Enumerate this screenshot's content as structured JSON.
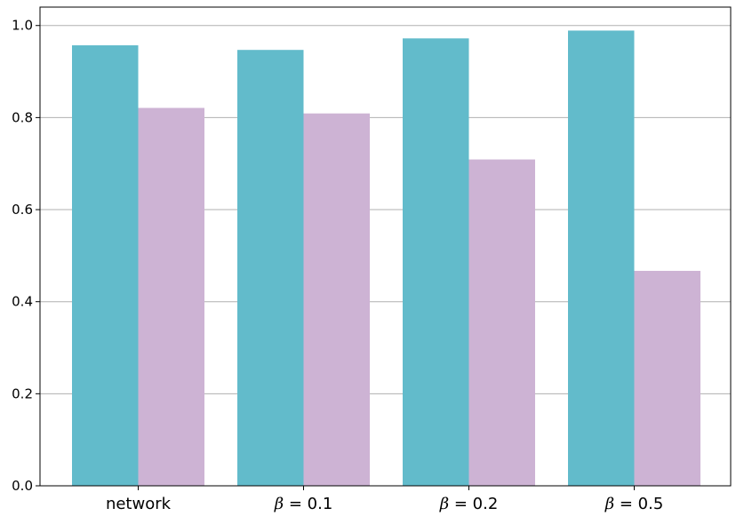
{
  "chart_data": {
    "type": "bar",
    "categories": [
      {
        "label": "network",
        "math": false,
        "symbol": "",
        "value_text": ""
      },
      {
        "label": "β = 0.1",
        "math": true,
        "symbol": "β",
        "value_text": " = 0.1"
      },
      {
        "label": "β = 0.2",
        "math": true,
        "symbol": "β",
        "value_text": " = 0.2"
      },
      {
        "label": "β = 0.5",
        "math": true,
        "symbol": "β",
        "value_text": " = 0.5"
      }
    ],
    "series": [
      {
        "color": "#62bbcb",
        "values": [
          0.957,
          0.947,
          0.972,
          0.989
        ]
      },
      {
        "color": "#cdb3d4",
        "values": [
          0.821,
          0.809,
          0.709,
          0.467
        ]
      }
    ],
    "title": "",
    "xlabel": "",
    "ylabel": "",
    "ylim": [
      0,
      1.04
    ],
    "yticks": [
      "0.0",
      "0.2",
      "0.4",
      "0.6",
      "0.8",
      "1.0"
    ],
    "grid": "horizontal",
    "legend": "none"
  }
}
